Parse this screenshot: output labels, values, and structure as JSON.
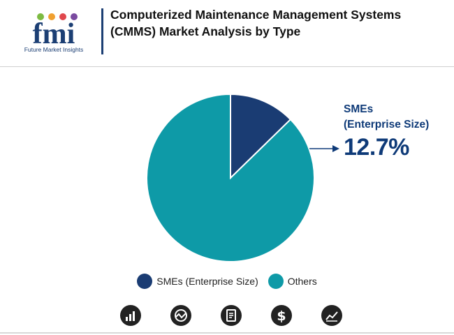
{
  "header": {
    "logo_text": "Future Market Insights",
    "logo_letters": "fmi",
    "title": "Computerized Maintenance Management Systems (CMMS) Market Analysis by Type"
  },
  "chart_data": {
    "type": "pie",
    "title": "Computerized Maintenance Management Systems (CMMS) Market Analysis by Type",
    "slices": [
      {
        "name": "SMEs (Enterprise Size)",
        "value": 12.7,
        "color": "#1a3c73"
      },
      {
        "name": "Others",
        "value": 87.3,
        "color": "#0e9aa7"
      }
    ],
    "callout": {
      "label": "SMEs (Enterprise Size)",
      "value_text": "12.7%"
    },
    "legend_position": "bottom"
  },
  "callout": {
    "label_line1": "SMEs",
    "label_line2": "(Enterprise Size)",
    "value": "12.7%"
  },
  "legend": {
    "items": [
      {
        "label": "SMEs (Enterprise Size)",
        "color": "#1a3c73"
      },
      {
        "label": "Others",
        "color": "#0e9aa7"
      }
    ]
  },
  "footer_icons": [
    "bar-chart-icon",
    "chart-analysis-icon",
    "report-document-icon",
    "dollar-icon",
    "line-trend-icon"
  ]
}
